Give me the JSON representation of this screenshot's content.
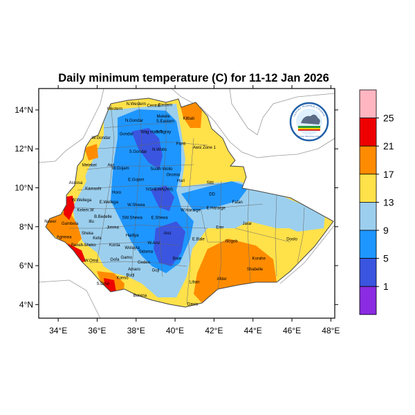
{
  "title": "Daily minimum temperature (C) for 11-12 Jan 2026",
  "map": {
    "lon_ticks": [
      {
        "value": 34,
        "label": "34°E"
      },
      {
        "value": 36,
        "label": "36°E"
      },
      {
        "value": 38,
        "label": "38°E"
      },
      {
        "value": 40,
        "label": "40°E"
      },
      {
        "value": 42,
        "label": "42°E"
      },
      {
        "value": 44,
        "label": "44°E"
      },
      {
        "value": 46,
        "label": "46°E"
      },
      {
        "value": 48,
        "label": "48°E"
      }
    ],
    "lat_ticks": [
      {
        "value": 4,
        "label": "4°N"
      },
      {
        "value": 6,
        "label": "6°N"
      },
      {
        "value": 8,
        "label": "8°N"
      },
      {
        "value": 10,
        "label": "10°N"
      },
      {
        "value": 12,
        "label": "12°N"
      },
      {
        "value": 14,
        "label": "14°N"
      }
    ],
    "lon_range": [
      33,
      48.2
    ],
    "lat_range": [
      3.3,
      15.1
    ]
  },
  "colorbar": {
    "labels": [
      "1",
      "5",
      "9",
      "13",
      "17",
      "21",
      "25"
    ],
    "colors": {
      "below_1": "#8b2be2",
      "1-5": "#3a55e0",
      "5-9": "#1e96ff",
      "9-13": "#9ccfee",
      "13-17": "#ffe14a",
      "17-21": "#ff8c00",
      "21-25": "#ee0000",
      "above_25": "#ffb6c1"
    }
  },
  "regions": [
    {
      "name": "Western",
      "lon": 36.9,
      "lat": 14.0
    },
    {
      "name": "N.Western",
      "lon": 38.0,
      "lat": 14.25
    },
    {
      "name": "Central",
      "lon": 38.9,
      "lat": 14.15
    },
    {
      "name": "Eastern",
      "lon": 39.5,
      "lat": 14.2
    },
    {
      "name": "Mekele",
      "lon": 39.4,
      "lat": 13.6
    },
    {
      "name": "S.Eastern",
      "lon": 39.5,
      "lat": 13.35
    },
    {
      "name": "N.Gondar",
      "lon": 37.9,
      "lat": 13.4
    },
    {
      "name": "Kilbati",
      "lon": 40.7,
      "lat": 13.5
    },
    {
      "name": "Gondar",
      "lon": 37.5,
      "lat": 12.7
    },
    {
      "name": "Wag Hamra",
      "lon": 38.8,
      "lat": 12.8
    },
    {
      "name": "S.Tigray",
      "lon": 39.4,
      "lat": 12.8
    },
    {
      "name": "W.Gondar",
      "lon": 36.2,
      "lat": 12.5
    },
    {
      "name": "Fanti",
      "lon": 40.3,
      "lat": 12.2
    },
    {
      "name": "Awsi Zone 1",
      "lon": 41.5,
      "lat": 12.0
    },
    {
      "name": "S.Gondar",
      "lon": 38.1,
      "lat": 11.8
    },
    {
      "name": "N.Wollo",
      "lon": 39.2,
      "lat": 11.9
    },
    {
      "name": "Metekel",
      "lon": 35.6,
      "lat": 11.1
    },
    {
      "name": "Awi",
      "lon": 36.7,
      "lat": 11.1
    },
    {
      "name": "W.Gojam",
      "lon": 37.2,
      "lat": 10.95
    },
    {
      "name": "South Wollo",
      "lon": 39.3,
      "lat": 10.9
    },
    {
      "name": "Oromia",
      "lon": 39.9,
      "lat": 10.6
    },
    {
      "name": "Hari",
      "lon": 40.3,
      "lat": 10.3
    },
    {
      "name": "E.Gojam",
      "lon": 38.0,
      "lat": 10.35
    },
    {
      "name": "Sitti",
      "lon": 41.8,
      "lat": 10.2
    },
    {
      "name": "Assosa",
      "lon": 34.9,
      "lat": 10.2
    },
    {
      "name": "Kamashi",
      "lon": 35.8,
      "lat": 9.9
    },
    {
      "name": "NSHEWA(AM)",
      "lon": 39.2,
      "lat": 9.85
    },
    {
      "name": "DD",
      "lon": 41.9,
      "lat": 9.6
    },
    {
      "name": "Fafan",
      "lon": 43.2,
      "lat": 9.2
    },
    {
      "name": "W.Wellega",
      "lon": 35.2,
      "lat": 9.3
    },
    {
      "name": "E.Wellega",
      "lon": 36.6,
      "lat": 9.2
    },
    {
      "name": "Horo",
      "lon": 37.0,
      "lat": 9.7
    },
    {
      "name": "W.Shewa",
      "lon": 38.0,
      "lat": 9.05
    },
    {
      "name": "W.Hararge",
      "lon": 40.8,
      "lat": 8.8
    },
    {
      "name": "E.Hararge",
      "lon": 42.1,
      "lat": 8.9
    },
    {
      "name": "Kelem.W",
      "lon": 35.4,
      "lat": 8.8
    },
    {
      "name": "B.Bedelle",
      "lon": 36.3,
      "lat": 8.45
    },
    {
      "name": "SW.Shewa",
      "lon": 37.8,
      "lat": 8.4
    },
    {
      "name": "E.Shewa",
      "lon": 39.2,
      "lat": 8.4
    },
    {
      "name": "Illu",
      "lon": 35.7,
      "lat": 8.2
    },
    {
      "name": "Jimma",
      "lon": 36.8,
      "lat": 7.9
    },
    {
      "name": "Arsi",
      "lon": 39.6,
      "lat": 7.6
    },
    {
      "name": "Erer",
      "lon": 42.3,
      "lat": 7.9
    },
    {
      "name": "Jarar",
      "lon": 43.7,
      "lat": 8.1
    },
    {
      "name": "Gambela",
      "lon": 34.6,
      "lat": 8.1
    },
    {
      "name": "Sheka",
      "lon": 35.5,
      "lat": 7.6
    },
    {
      "name": "Kefa",
      "lon": 36.0,
      "lat": 7.35
    },
    {
      "name": "Hadiya",
      "lon": 37.8,
      "lat": 7.5
    },
    {
      "name": "W.Arsi",
      "lon": 38.9,
      "lat": 7.1
    },
    {
      "name": "E.Bale",
      "lon": 41.2,
      "lat": 7.3
    },
    {
      "name": "Nogob",
      "lon": 42.9,
      "lat": 7.2
    },
    {
      "name": "Doolo",
      "lon": 46.0,
      "lat": 7.3
    },
    {
      "name": "Agnewa",
      "lon": 34.3,
      "lat": 7.4
    },
    {
      "name": "Bench Sheko",
      "lon": 35.3,
      "lat": 7.0
    },
    {
      "name": "Konta",
      "lon": 36.9,
      "lat": 7.0
    },
    {
      "name": "Wolayta",
      "lon": 37.8,
      "lat": 6.85
    },
    {
      "name": "Sidama",
      "lon": 38.5,
      "lat": 6.65
    },
    {
      "name": "Bale",
      "lon": 40.1,
      "lat": 6.3
    },
    {
      "name": "Korahe",
      "lon": 44.3,
      "lat": 6.3
    },
    {
      "name": "W.Omo",
      "lon": 35.7,
      "lat": 6.2
    },
    {
      "name": "Gofa",
      "lon": 36.9,
      "lat": 6.25
    },
    {
      "name": "Gamo",
      "lon": 37.5,
      "lat": 6.35
    },
    {
      "name": "Gedeo",
      "lon": 38.4,
      "lat": 6.1
    },
    {
      "name": "Shabelle",
      "lon": 44.1,
      "lat": 5.75
    },
    {
      "name": "Amaro",
      "lon": 37.9,
      "lat": 5.75
    },
    {
      "name": "Guji",
      "lon": 39.0,
      "lat": 5.7
    },
    {
      "name": "Burji",
      "lon": 37.7,
      "lat": 5.45
    },
    {
      "name": "Konso",
      "lon": 37.3,
      "lat": 5.3
    },
    {
      "name": "Liban",
      "lon": 41.0,
      "lat": 5.1
    },
    {
      "name": "Afder",
      "lon": 42.4,
      "lat": 5.25
    },
    {
      "name": "S.Omo",
      "lon": 36.3,
      "lat": 5.0
    },
    {
      "name": "Borena",
      "lon": 38.2,
      "lat": 4.4
    },
    {
      "name": "Dawa",
      "lon": 40.9,
      "lat": 3.95
    },
    {
      "name": "Nuwer",
      "lon": 33.6,
      "lat": 8.2
    }
  ],
  "logo": {
    "text_top": "የኢትዮጵያ ሚቲዎሮሎጂ ኢንስቲትዩት",
    "text_bottom": "Ethiopian Meteorology Institute"
  }
}
